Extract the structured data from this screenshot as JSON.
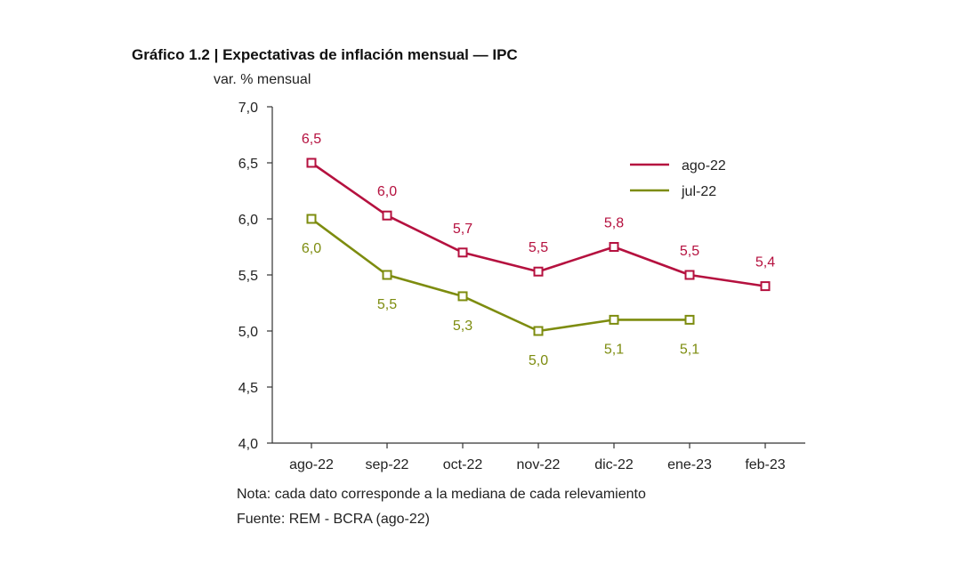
{
  "chart_data": {
    "type": "line",
    "title": "Gráfico 1.2 | Expectativas de inflación mensual — IPC",
    "ylabel": "var. % mensual",
    "xlabel": "",
    "categories": [
      "ago-22",
      "sep-22",
      "oct-22",
      "nov-22",
      "dic-22",
      "ene-23",
      "feb-23"
    ],
    "ylim": [
      4.0,
      7.0
    ],
    "yticks": [
      "4,0",
      "4,5",
      "5,0",
      "5,5",
      "6,0",
      "6,5",
      "7,0"
    ],
    "ytick_values": [
      4.0,
      4.5,
      5.0,
      5.5,
      6.0,
      6.5,
      7.0
    ],
    "grid": false,
    "legend_position": "top-right",
    "series": [
      {
        "name": "ago-22",
        "color": "#b5113f",
        "values": [
          6.5,
          6.03,
          5.7,
          5.53,
          5.75,
          5.5,
          5.4
        ],
        "labels": [
          "6,5",
          "6,0",
          "5,7",
          "5,5",
          "5,8",
          "5,5",
          "5,4"
        ]
      },
      {
        "name": "jul-22",
        "color": "#7d8c0f",
        "values": [
          6.0,
          5.5,
          5.31,
          5.0,
          5.1,
          5.1,
          null
        ],
        "labels": [
          "6,0",
          "5,5",
          "5,3",
          "5,0",
          "5,1",
          "5,1",
          ""
        ]
      }
    ]
  },
  "notes": {
    "nota": "Nota: cada dato corresponde a la mediana de cada relevamiento",
    "fuente": "Fuente: REM - BCRA (ago-22)"
  }
}
